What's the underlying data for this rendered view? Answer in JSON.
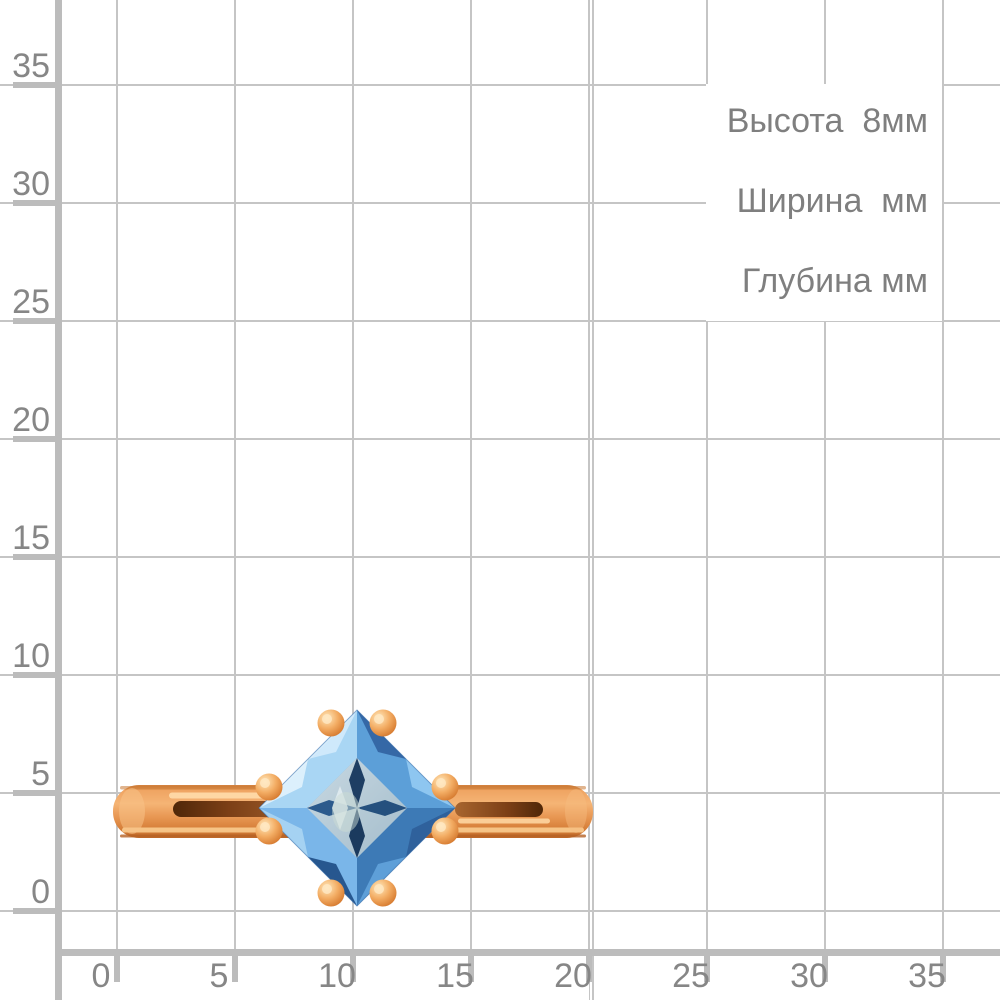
{
  "page": {
    "type": "jewelry product dimensions image",
    "background": "#ffffff"
  },
  "product_image": {
    "description": "rose-gold ring with square blue gemstone, side view, double claw prongs",
    "gold_color": "#eda05e",
    "gold_highlight": "#fbd094",
    "gold_shadow": "#b05e1e",
    "gem_color": "#5a9fd8",
    "gem_light": "#a9d6f4",
    "gem_dark": "#1e3e63"
  },
  "info_panel": {
    "lines": [
      {
        "name": "height",
        "text": "Высота  8мм"
      },
      {
        "name": "width",
        "text": "Ширина  мм"
      },
      {
        "name": "depth",
        "text": "Глубина мм"
      }
    ]
  },
  "ruler": {
    "unit": "mm",
    "y_axis": {
      "ticks": [
        {
          "label": "35",
          "pos": 85
        },
        {
          "label": "30",
          "pos": 203
        },
        {
          "label": "25",
          "pos": 321
        },
        {
          "label": "20",
          "pos": 439
        },
        {
          "label": "15",
          "pos": 557
        },
        {
          "label": "10",
          "pos": 675
        },
        {
          "label": "5",
          "pos": 793
        },
        {
          "label": "0",
          "pos": 911
        }
      ]
    },
    "x_axis": {
      "ticks": [
        {
          "label": "0",
          "pos": 117
        },
        {
          "label": "5",
          "pos": 235
        },
        {
          "label": "10",
          "pos": 353
        },
        {
          "label": "15",
          "pos": 471
        },
        {
          "label": "20",
          "pos": 589
        },
        {
          "label": "25",
          "pos": 707
        },
        {
          "label": "30",
          "pos": 825
        },
        {
          "label": "35",
          "pos": 943
        }
      ]
    }
  },
  "colors": {
    "grid_line": "#c5c5c5",
    "axis_line": "#bcbcbc",
    "axis_label": "#868686",
    "info_text": "#7f7f7f"
  }
}
